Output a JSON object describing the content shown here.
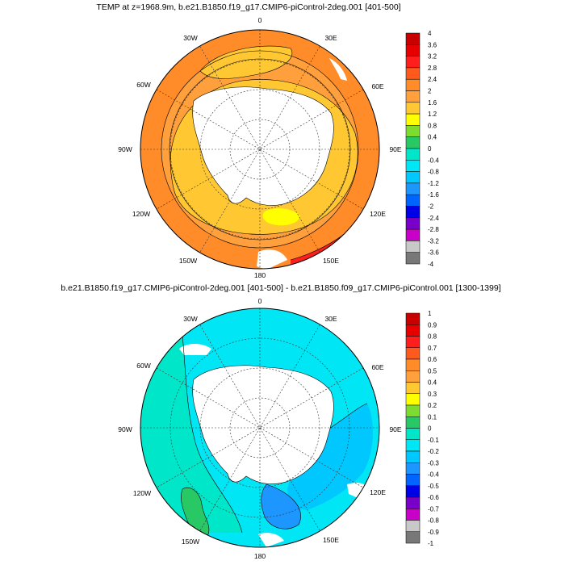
{
  "chart_data": [
    {
      "type": "heatmap",
      "title": "TEMP at z=1968.9m, b.e21.B1850.f19_g17.CMIP6-piControl-2deg.001 [401-500]",
      "projection": "south polar stereographic",
      "lon_labels": [
        "0",
        "30E",
        "60E",
        "90E",
        "120E",
        "150E",
        "180",
        "150W",
        "120W",
        "90W",
        "60W",
        "30W"
      ],
      "colorbar": {
        "levels": [
          "4",
          "3.6",
          "3.2",
          "2.8",
          "2.4",
          "2",
          "1.6",
          "1.2",
          "0.8",
          "0.4",
          "0",
          "-0.4",
          "-0.8",
          "-1.2",
          "-1.6",
          "-2",
          "-2.4",
          "-2.8",
          "-3.2",
          "-3.6",
          "-4"
        ],
        "colors": [
          "#c80000",
          "#e60000",
          "#ff1e1e",
          "#ff5a1e",
          "#ff8c28",
          "#ffa03c",
          "#ffc832",
          "#ffff00",
          "#7ddc2d",
          "#28c864",
          "#00e6c8",
          "#00e6f5",
          "#00c8ff",
          "#1e96ff",
          "#0064ff",
          "#0000e6",
          "#7800c8",
          "#c800c8",
          "#c8c8c8",
          "#787878"
        ]
      }
    },
    {
      "type": "heatmap",
      "title": "b.e21.B1850.f19_g17.CMIP6-piControl-2deg.001 [401-500] - b.e21.B1850.f09_g17.CMIP6-piControl.001 [1300-1399]",
      "projection": "south polar stereographic",
      "lon_labels": [
        "0",
        "30E",
        "60E",
        "90E",
        "120E",
        "150E",
        "180",
        "150W",
        "120W",
        "90W",
        "60W",
        "30W"
      ],
      "colorbar": {
        "levels": [
          "1",
          "0.9",
          "0.8",
          "0.7",
          "0.6",
          "0.5",
          "0.4",
          "0.3",
          "0.2",
          "0.1",
          "0",
          "-0.1",
          "-0.2",
          "-0.3",
          "-0.4",
          "-0.5",
          "-0.6",
          "-0.7",
          "-0.8",
          "-0.9",
          "-1"
        ],
        "colors": [
          "#c80000",
          "#e60000",
          "#ff1e1e",
          "#ff5a1e",
          "#ff8c28",
          "#ffa03c",
          "#ffc832",
          "#ffff00",
          "#7ddc2d",
          "#28c864",
          "#00e6c8",
          "#00e6f5",
          "#00c8ff",
          "#1e96ff",
          "#0064ff",
          "#0000e6",
          "#7800c8",
          "#c800c8",
          "#c8c8c8",
          "#787878"
        ]
      }
    }
  ]
}
